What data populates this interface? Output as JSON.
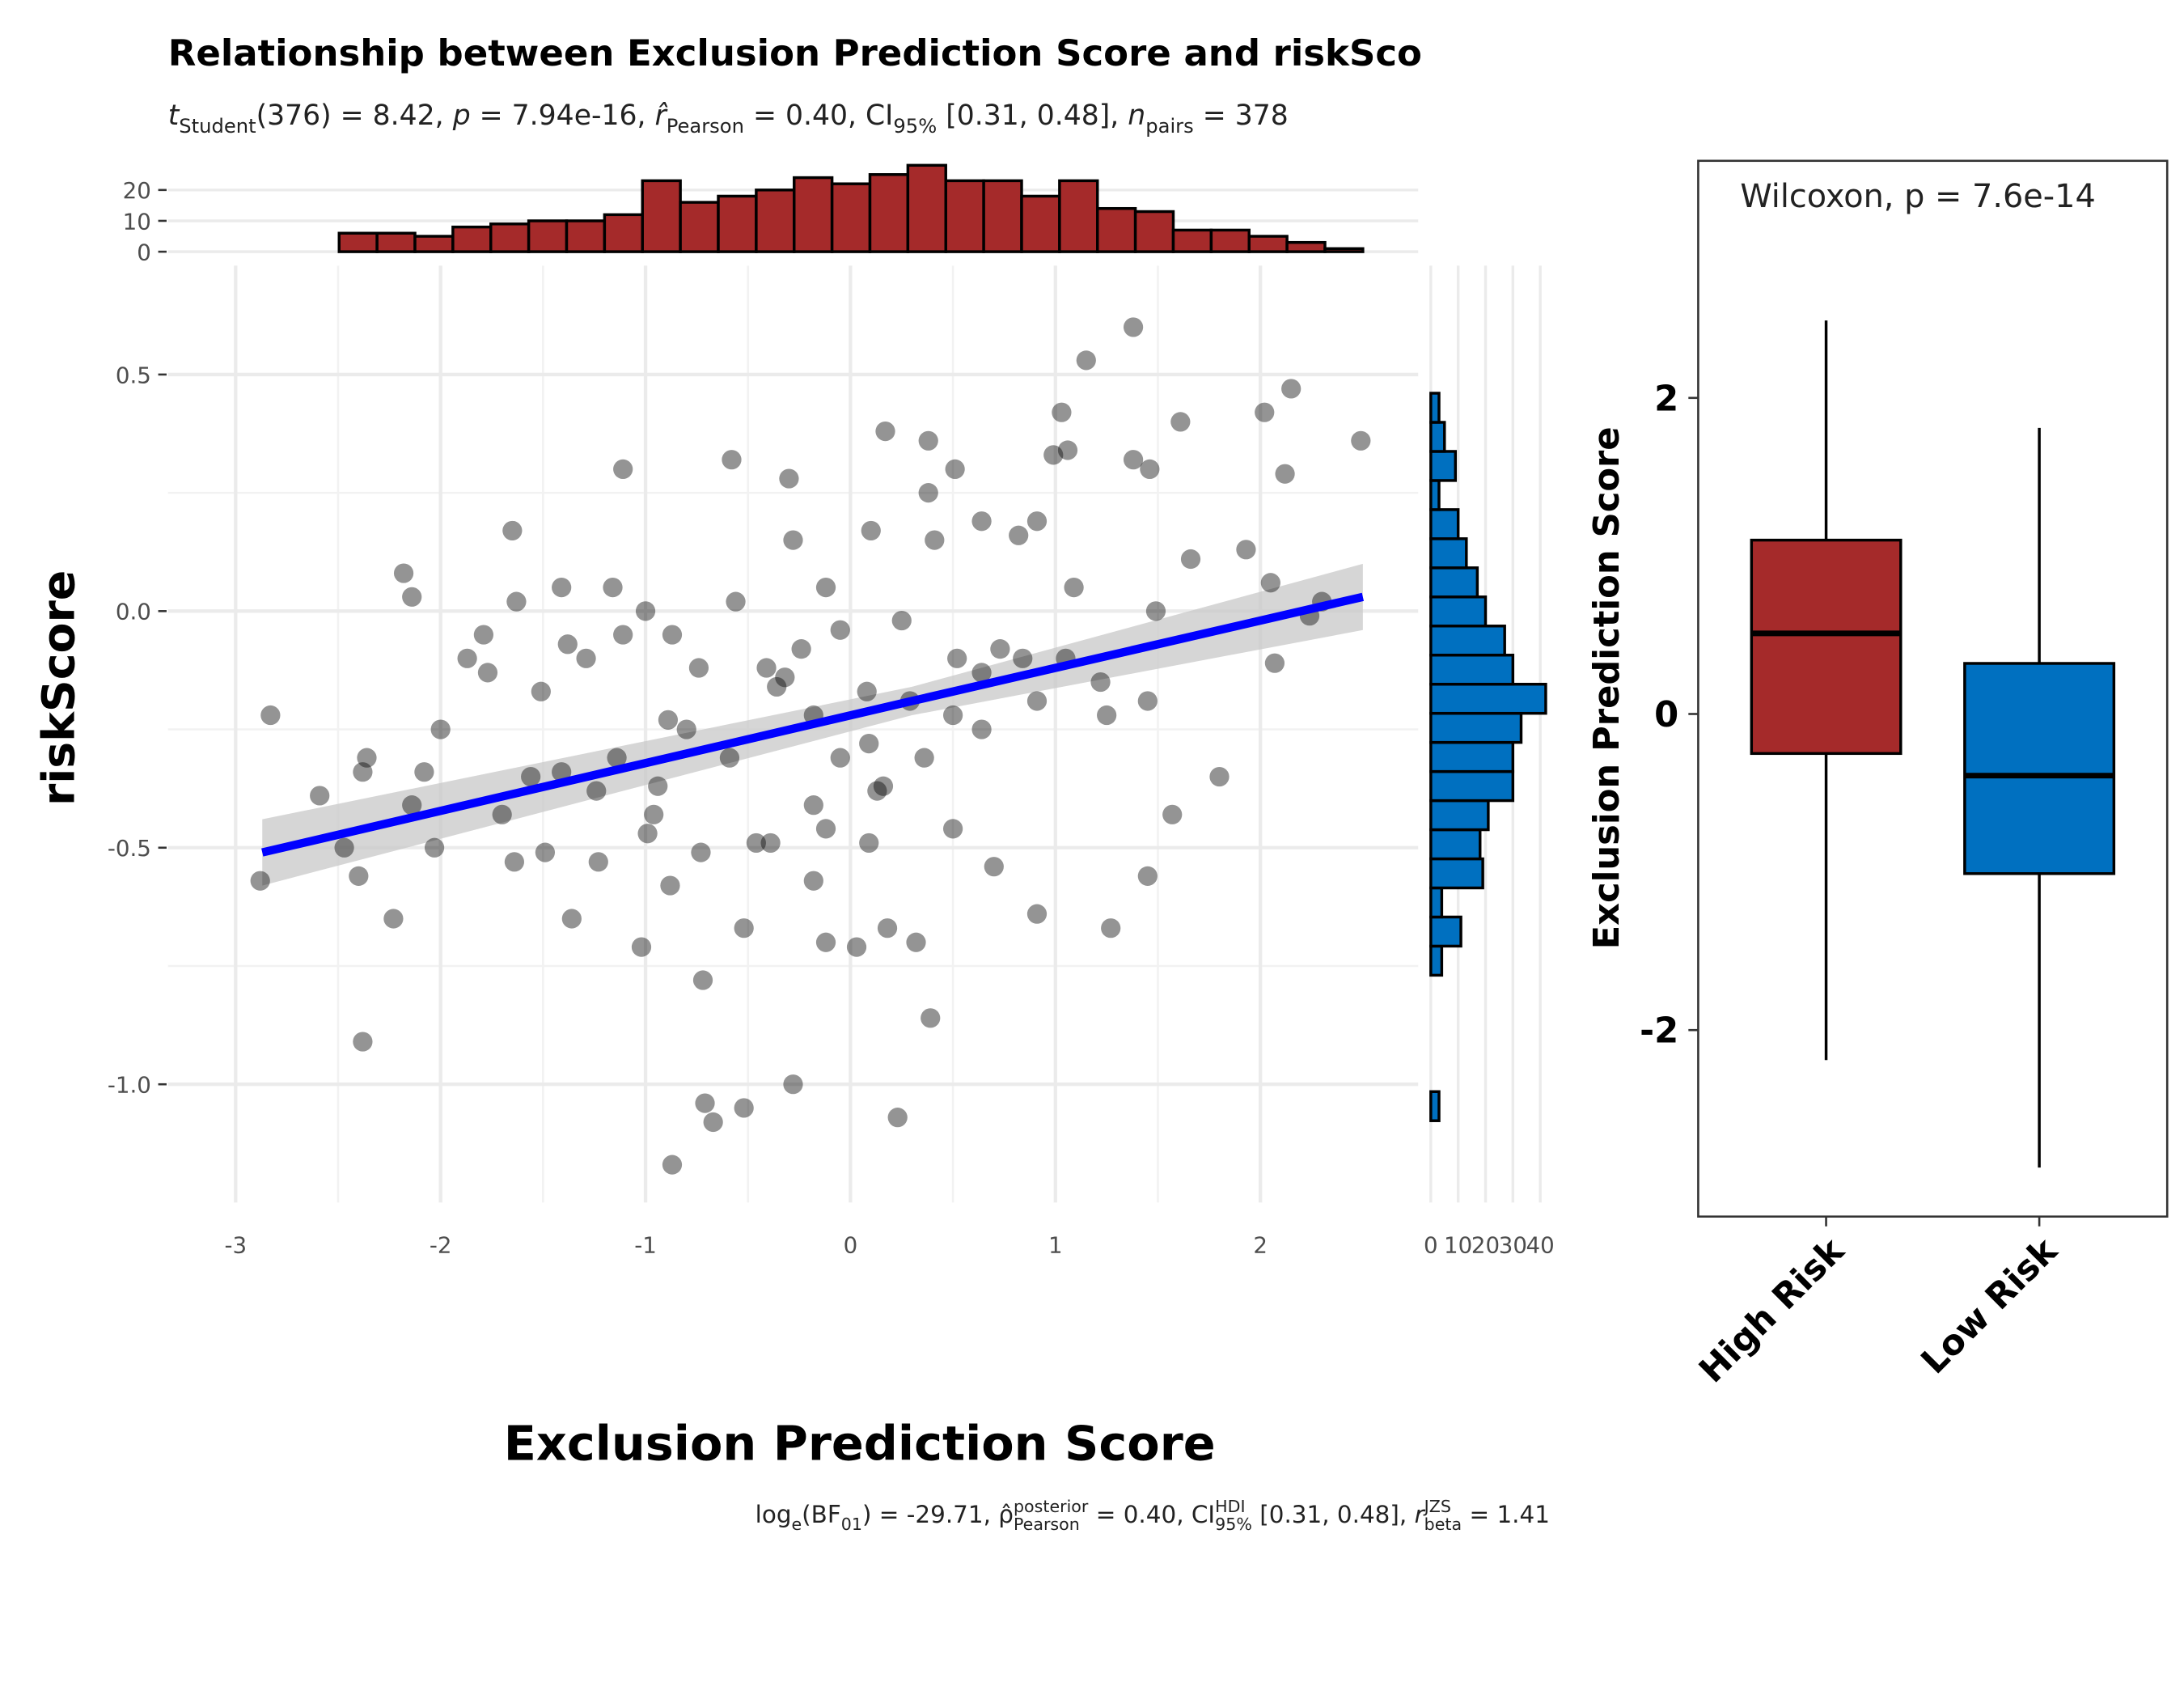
{
  "chart_data": [
    {
      "type": "scatter",
      "title": "Relationship between Exclusion Prediction Score and riskSco",
      "subtitle": [
        {
          "text": "t",
          "style": "i"
        },
        {
          "text": "Student",
          "style": "sub"
        },
        {
          "text": "(376) = 8.42, "
        },
        {
          "text": "p",
          "style": "i"
        },
        {
          "text": " = 7.94e-16, "
        },
        {
          "text": "r̂",
          "style": "i"
        },
        {
          "text": "Pearson",
          "style": "sub"
        },
        {
          "text": " = 0.40, CI"
        },
        {
          "text": "95%",
          "style": "sub"
        },
        {
          "text": " [0.31, 0.48], "
        },
        {
          "text": "n",
          "style": "i"
        },
        {
          "text": "pairs",
          "style": "sub"
        },
        {
          "text": " = 378"
        }
      ],
      "caption": [
        {
          "text": "log"
        },
        {
          "text": "e",
          "style": "sub"
        },
        {
          "text": "(BF"
        },
        {
          "text": "01",
          "style": "sub"
        },
        {
          "text": ") = -29.71, ρ̂"
        },
        {
          "sup": "posterior",
          "sub": "Pearson"
        },
        {
          "text": " = 0.40, CI"
        },
        {
          "sup": "HDI",
          "sub": "95%"
        },
        {
          "text": " [0.31, 0.48], "
        },
        {
          "text": "r",
          "style": "i"
        },
        {
          "sup": "JZS",
          "sub": "beta"
        },
        {
          "text": " = 1.41"
        }
      ],
      "xlabel": "Exclusion Prediction Score",
      "ylabel": "riskScore",
      "xlim": [
        -3.33,
        2.77
      ],
      "ylim": [
        -1.25,
        0.73
      ],
      "xticks": [
        -3,
        -2,
        -1,
        0,
        1,
        2
      ],
      "yticks": [
        {
          "value": -1,
          "label": "-1.0"
        },
        -0.5,
        {
          "value": 0,
          "label": "0.0"
        },
        0.5
      ],
      "grid": true,
      "color": "#000000",
      "x": [
        -2.83,
        -2.88,
        -2.59,
        -2.47,
        -2.38,
        -2.36,
        -2.38,
        -2.4,
        -2.23,
        -2.18,
        -2.14,
        -2.14,
        -2.08,
        -2.0,
        -2.03,
        -1.87,
        -1.79,
        -1.77,
        -1.7,
        -1.65,
        -1.63,
        -1.64,
        -1.56,
        -1.51,
        -1.49,
        -1.41,
        -1.38,
        -1.36,
        -1.29,
        -1.24,
        -1.23,
        -1.16,
        -1.11,
        -1.11,
        -1.0,
        -1.02,
        -0.99,
        -0.96,
        -0.87,
        -0.87,
        -0.88,
        -0.89,
        -0.74,
        -0.72,
        -0.71,
        -0.67,
        -0.58,
        -0.56,
        -0.52,
        -0.52,
        -0.46,
        -0.41,
        -0.36,
        -0.3,
        -0.28,
        -0.28,
        -0.24,
        -0.18,
        -0.18,
        -0.12,
        -0.12,
        -0.05,
        0.03,
        0.08,
        0.1,
        0.13,
        0.17,
        0.18,
        0.23,
        0.25,
        0.32,
        0.38,
        0.38,
        0.39,
        0.41,
        0.51,
        0.52,
        0.64,
        0.7,
        0.73,
        0.82,
        0.91,
        0.91,
        0.99,
        1.03,
        1.06,
        1.09,
        1.15,
        1.22,
        1.27,
        1.38,
        1.38,
        1.45,
        1.46,
        1.49,
        1.57,
        1.61,
        1.66,
        1.8,
        1.93,
        2.02,
        2.05,
        2.07,
        2.12,
        2.15,
        2.24,
        2.3,
        2.49,
        -0.32,
        -0.05,
        0.09,
        0.29,
        0.5,
        0.64,
        0.84,
        1.05,
        -0.59,
        -0.8,
        -0.94,
        -1.14,
        -1.41,
        -0.18,
        0.16,
        0.36,
        0.64,
        0.91,
        1.25,
        1.45,
        -0.12,
        0.09,
        -0.39,
        -0.73,
        0.5
      ],
      "y": [
        -0.22,
        -0.57,
        -0.39,
        -0.5,
        -0.34,
        -0.31,
        -0.91,
        -0.56,
        -0.65,
        0.08,
        0.03,
        -0.41,
        -0.34,
        -0.25,
        -0.5,
        -0.1,
        -0.05,
        -0.13,
        -0.43,
        0.17,
        0.02,
        -0.53,
        -0.35,
        -0.17,
        -0.51,
        0.05,
        -0.07,
        -0.65,
        -0.1,
        -0.38,
        -0.53,
        0.05,
        0.3,
        -0.05,
        0.0,
        -0.71,
        -0.47,
        -0.43,
        -0.05,
        -1.17,
        -0.58,
        -0.23,
        -0.12,
        -0.78,
        -1.04,
        -1.08,
        0.32,
        0.02,
        -1.05,
        -0.67,
        -0.49,
        -0.12,
        -0.16,
        0.28,
        -1.0,
        0.15,
        -0.08,
        -0.41,
        -0.57,
        0.05,
        -0.7,
        -0.04,
        -0.71,
        -0.17,
        0.17,
        -0.38,
        0.38,
        -0.67,
        -1.07,
        -0.02,
        -0.7,
        0.36,
        0.25,
        -0.86,
        0.15,
        0.3,
        -0.1,
        0.19,
        -0.54,
        -0.08,
        0.16,
        0.19,
        -0.64,
        0.33,
        0.42,
        0.34,
        0.05,
        0.53,
        -0.15,
        -0.67,
        0.6,
        0.32,
        -0.56,
        0.3,
        0.0,
        -0.43,
        0.4,
        0.11,
        -0.35,
        0.13,
        0.42,
        0.06,
        -0.11,
        0.29,
        0.47,
        -0.01,
        0.02,
        0.36,
        -0.14,
        -0.31,
        -0.28,
        -0.19,
        -0.22,
        -0.13,
        -0.1,
        -0.1,
        -0.31,
        -0.25,
        -0.37,
        -0.31,
        -0.34,
        -0.22,
        -0.37,
        -0.31,
        -0.25,
        -0.19,
        -0.22,
        -0.19,
        -0.46,
        -0.49,
        -0.49,
        -0.51,
        -0.46
      ],
      "fit": {
        "color": "#0000FF",
        "band_color": "#C8C8C8",
        "x": [
          -2.87,
          0.3,
          2.5
        ],
        "y": [
          -0.51,
          -0.19,
          0.03
        ],
        "lower": [
          -0.58,
          -0.22,
          -0.04
        ],
        "upper": [
          -0.44,
          -0.16,
          0.1
        ]
      }
    },
    {
      "type": "histogram",
      "orientation": "vertical",
      "color": "#A52A2A",
      "bins": [
        -3.05,
        -2.865,
        -2.68,
        -2.495,
        -2.31,
        -2.125,
        -1.94,
        -1.755,
        -1.57,
        -1.385,
        -1.2,
        -1.015,
        -0.83,
        -0.645,
        -0.46,
        -0.275,
        -0.09,
        0.095,
        0.28,
        0.465,
        0.65,
        0.835,
        1.02,
        1.205,
        1.39,
        1.575,
        1.76,
        1.945,
        2.13,
        2.315,
        2.5
      ],
      "counts": [
        0,
        0,
        0,
        6,
        6,
        5,
        8,
        9,
        10,
        10,
        12,
        23,
        16,
        18,
        20,
        24,
        22,
        25,
        28,
        23,
        23,
        18,
        23,
        14,
        13,
        7,
        7,
        5,
        3,
        1
      ],
      "ylim": [
        0,
        29
      ],
      "yticks": [
        0,
        10,
        20
      ],
      "grid": true
    },
    {
      "type": "histogram",
      "orientation": "horizontal",
      "color": "#0070C0",
      "bins": [
        -1.2,
        -1.1385,
        -1.077,
        -1.0155,
        -0.954,
        -0.8925,
        -0.831,
        -0.7695,
        -0.708,
        -0.6465,
        -0.585,
        -0.5235,
        -0.462,
        -0.4005,
        -0.339,
        -0.2775,
        -0.216,
        -0.1545,
        -0.093,
        -0.0315,
        0.03,
        0.0915,
        0.153,
        0.2145,
        0.276,
        0.3375,
        0.399,
        0.4605,
        0.522,
        0.5835,
        0.645
      ],
      "counts": [
        0,
        0,
        3,
        0,
        0,
        0,
        0,
        4,
        11,
        4,
        19,
        18,
        21,
        30,
        30,
        33,
        42,
        30,
        27,
        20,
        17,
        13,
        10,
        3,
        9,
        5,
        3,
        0,
        0,
        0
      ],
      "xlim": [
        0,
        44
      ],
      "xticks": [
        0,
        10,
        20,
        30,
        40
      ],
      "grid": true
    },
    {
      "type": "box",
      "ylabel": "Exclusion Prediction Score",
      "annotation": "Wilcoxon, p = 7.6e-14",
      "categories": [
        "High Risk",
        "Low Risk"
      ],
      "colors": [
        "#A52A2A",
        "#0070C0"
      ],
      "whisker_low": [
        -2.19,
        -2.87
      ],
      "q1": [
        -0.25,
        -1.01
      ],
      "median": [
        0.51,
        -0.39
      ],
      "q3": [
        1.1,
        0.32
      ],
      "whisker_high": [
        2.49,
        1.81
      ],
      "ylim": [
        -3.18,
        3.5
      ],
      "yticks": [
        -2,
        0,
        2
      ],
      "grid": false
    }
  ]
}
